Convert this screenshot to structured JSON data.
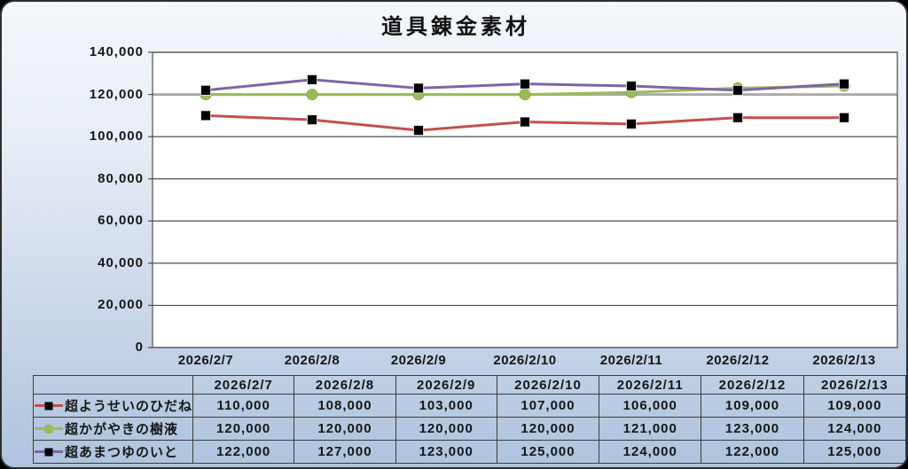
{
  "title": "道具錬金素材",
  "chart_data": {
    "type": "line",
    "title": "道具錬金素材",
    "categories": [
      "2026/2/7",
      "2026/2/8",
      "2026/2/9",
      "2026/2/10",
      "2026/2/11",
      "2026/2/12",
      "2026/2/13"
    ],
    "series": [
      {
        "name": "超ようせいのひだね",
        "color": "#C0504D",
        "marker": "square",
        "marker_color": "#000000",
        "values": [
          110000,
          108000,
          103000,
          107000,
          106000,
          109000,
          109000
        ]
      },
      {
        "name": "超かがやきの樹液",
        "color": "#9BBB59",
        "marker": "circle",
        "marker_color": "#9BBB59",
        "values": [
          120000,
          120000,
          120000,
          120000,
          121000,
          123000,
          124000
        ]
      },
      {
        "name": "超あまつゆのいと",
        "color": "#8064A2",
        "marker": "square",
        "marker_color": "#000000",
        "values": [
          122000,
          127000,
          123000,
          125000,
          124000,
          122000,
          125000
        ]
      }
    ],
    "ylim": [
      0,
      140000
    ],
    "ytick_step": 20000,
    "ytick_labels": [
      "0",
      "20,000",
      "40,000",
      "60,000",
      "80,000",
      "100,000",
      "120,000",
      "140,000"
    ],
    "grid": true,
    "highlight_gridline_value": 120000,
    "legend_position": "table-left-column",
    "plot_background": "#ffffff"
  },
  "colors": {
    "frame_gradient_top": "#f4f7fb",
    "frame_gradient_bottom": "#aec3de",
    "gridline": "#4e4e4e",
    "highlight_gridline": "#ababab",
    "table_border": "#3c3c3c",
    "text": "#161616"
  }
}
